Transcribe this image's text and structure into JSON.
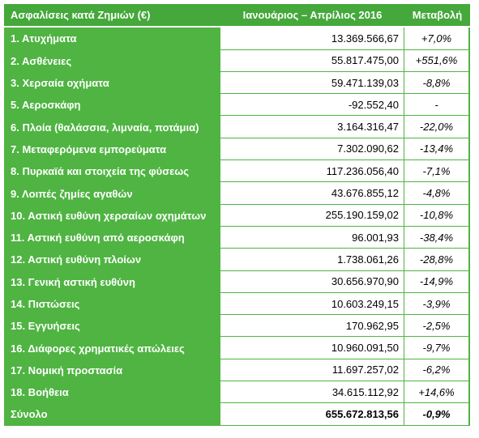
{
  "table": {
    "headers": [
      "Ασφαλίσεις κατά Ζημιών (€)",
      "Ιανουάριος – Απρίλιος 2016",
      "Μεταβολή"
    ],
    "rows": [
      {
        "label": "1. Ατυχήματα",
        "value": "13.369.566,67",
        "change": "+7,0%"
      },
      {
        "label": "2. Ασθένειες",
        "value": "55.817.475,00",
        "change": "+551,6%"
      },
      {
        "label": "3. Χερσαία οχήματα",
        "value": "59.471.139,03",
        "change": "-8,8%"
      },
      {
        "label": "5. Αεροσκάφη",
        "value": "-92.552,40",
        "change": "-"
      },
      {
        "label": "6. Πλοία (θαλάσσια, λιμναία, ποτάμια)",
        "value": "3.164.316,47",
        "change": "-22,0%"
      },
      {
        "label": "7. Μεταφερόμενα εμπορεύματα",
        "value": "7.302.090,62",
        "change": "-13,4%"
      },
      {
        "label": "8. Πυρκαϊά και στοιχεία της φύσεως",
        "value": "117.236.056,40",
        "change": "-7,1%"
      },
      {
        "label": "9. Λοιπές ζημίες αγαθών",
        "value": "43.676.855,12",
        "change": "-4,8%"
      },
      {
        "label": "10. Αστική ευθύνη χερσαίων οχημάτων",
        "value": "255.190.159,02",
        "change": "-10,8%"
      },
      {
        "label": "11. Αστική ευθύνη από αεροσκάφη",
        "value": "96.001,93",
        "change": "-38,4%"
      },
      {
        "label": "12. Αστική ευθύνη πλοίων",
        "value": "1.738.061,26",
        "change": "-28,8%"
      },
      {
        "label": "13. Γενική αστική ευθύνη",
        "value": "30.656.970,90",
        "change": "-14,9%"
      },
      {
        "label": "14. Πιστώσεις",
        "value": "10.603.249,15",
        "change": "-3,9%"
      },
      {
        "label": "15. Εγγυήσεις",
        "value": "170.962,95",
        "change": "-2,5%"
      },
      {
        "label": "16. Διάφορες χρηματικές απώλειες",
        "value": "10.960.091,50",
        "change": "-9,7%"
      },
      {
        "label": "17. Νομική προστασία",
        "value": "11.697.257,02",
        "change": "-6,2%"
      },
      {
        "label": "18. Βοήθεια",
        "value": "34.615.112,92",
        "change": "+14,6%"
      }
    ],
    "total": {
      "label": "Σύνολο",
      "value": "655.672.813,56",
      "change": "-0,9%"
    }
  },
  "colors": {
    "header_green": "#44a83a",
    "label_green": "#4fb442",
    "text_white": "#ffffff"
  }
}
